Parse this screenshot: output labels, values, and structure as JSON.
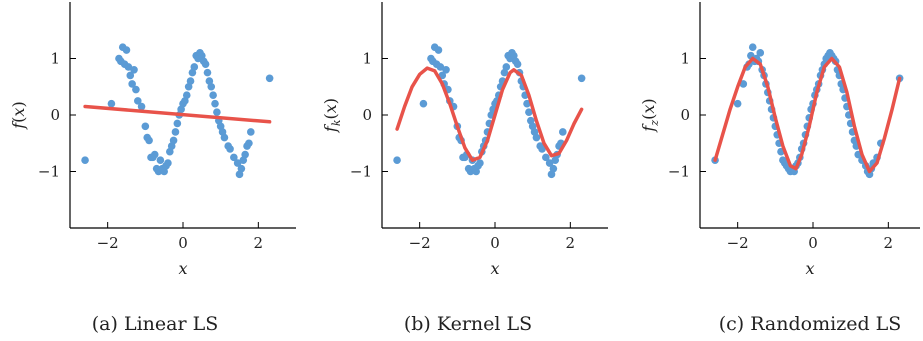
{
  "chart_data": [
    {
      "type": "scatter",
      "caption": "(a) Linear LS",
      "xlabel": "x",
      "ylabel": "f(x)",
      "ylabel_main": "f",
      "ylabel_sub": "",
      "xlim": [
        -3.0,
        3.0
      ],
      "ylim": [
        -2.0,
        2.0
      ],
      "xticks": [
        -2,
        0,
        2
      ],
      "yticks": [
        -1,
        0,
        1
      ],
      "xtick_labels": [
        "−2",
        "0",
        "2"
      ],
      "ytick_labels": [
        "−1",
        "0",
        "1"
      ],
      "points_color": "#5b9bd5",
      "line_color": "#e8534a",
      "points": [
        [
          -2.6,
          -0.8
        ],
        [
          -1.9,
          0.2
        ],
        [
          -1.7,
          1.0
        ],
        [
          -1.65,
          0.95
        ],
        [
          -1.6,
          1.2
        ],
        [
          -1.55,
          0.9
        ],
        [
          -1.5,
          1.15
        ],
        [
          -1.45,
          0.85
        ],
        [
          -1.4,
          0.7
        ],
        [
          -1.35,
          0.55
        ],
        [
          -1.3,
          0.8
        ],
        [
          -1.25,
          0.45
        ],
        [
          -1.2,
          0.25
        ],
        [
          -1.1,
          0.15
        ],
        [
          -1.0,
          -0.2
        ],
        [
          -0.95,
          -0.4
        ],
        [
          -0.9,
          -0.45
        ],
        [
          -0.85,
          -0.75
        ],
        [
          -0.8,
          -0.75
        ],
        [
          -0.75,
          -0.7
        ],
        [
          -0.7,
          -0.95
        ],
        [
          -0.65,
          -1.0
        ],
        [
          -0.6,
          -0.8
        ],
        [
          -0.55,
          -0.95
        ],
        [
          -0.5,
          -1.0
        ],
        [
          -0.45,
          -0.9
        ],
        [
          -0.4,
          -0.85
        ],
        [
          -0.35,
          -0.65
        ],
        [
          -0.3,
          -0.55
        ],
        [
          -0.25,
          -0.45
        ],
        [
          -0.2,
          -0.3
        ],
        [
          -0.15,
          -0.15
        ],
        [
          -0.1,
          0.0
        ],
        [
          -0.05,
          0.1
        ],
        [
          0.0,
          0.2
        ],
        [
          0.05,
          0.25
        ],
        [
          0.1,
          0.35
        ],
        [
          0.15,
          0.5
        ],
        [
          0.2,
          0.6
        ],
        [
          0.25,
          0.75
        ],
        [
          0.3,
          0.85
        ],
        [
          0.35,
          1.05
        ],
        [
          0.4,
          1.0
        ],
        [
          0.45,
          1.1
        ],
        [
          0.5,
          1.05
        ],
        [
          0.55,
          0.95
        ],
        [
          0.6,
          0.9
        ],
        [
          0.65,
          0.75
        ],
        [
          0.7,
          0.6
        ],
        [
          0.75,
          0.5
        ],
        [
          0.8,
          0.35
        ],
        [
          0.85,
          0.2
        ],
        [
          0.9,
          0.05
        ],
        [
          0.95,
          -0.1
        ],
        [
          1.0,
          -0.2
        ],
        [
          1.05,
          -0.3
        ],
        [
          1.1,
          -0.4
        ],
        [
          1.2,
          -0.55
        ],
        [
          1.25,
          -0.6
        ],
        [
          1.35,
          -0.75
        ],
        [
          1.45,
          -0.85
        ],
        [
          1.5,
          -1.05
        ],
        [
          1.55,
          -0.95
        ],
        [
          1.6,
          -0.8
        ],
        [
          1.65,
          -0.7
        ],
        [
          1.7,
          -0.55
        ],
        [
          1.75,
          -0.5
        ],
        [
          1.8,
          -0.3
        ],
        [
          2.3,
          0.65
        ]
      ],
      "curve": [
        [
          -2.6,
          0.15
        ],
        [
          2.3,
          -0.12
        ]
      ]
    },
    {
      "type": "scatter",
      "caption": "(b) Kernel LS",
      "xlabel": "x",
      "ylabel": "f_k(x)",
      "ylabel_main": "f",
      "ylabel_sub": "k",
      "xlim": [
        -3.0,
        3.0
      ],
      "ylim": [
        -2.0,
        2.0
      ],
      "xticks": [
        -2,
        0,
        2
      ],
      "yticks": [
        -1,
        0,
        1
      ],
      "xtick_labels": [
        "−2",
        "0",
        "2"
      ],
      "ytick_labels": [
        "−1",
        "0",
        "1"
      ],
      "points_color": "#5b9bd5",
      "line_color": "#e8534a",
      "points": [
        [
          -2.6,
          -0.8
        ],
        [
          -1.9,
          0.2
        ],
        [
          -1.7,
          1.0
        ],
        [
          -1.65,
          0.95
        ],
        [
          -1.6,
          1.2
        ],
        [
          -1.55,
          0.9
        ],
        [
          -1.5,
          1.15
        ],
        [
          -1.45,
          0.85
        ],
        [
          -1.4,
          0.7
        ],
        [
          -1.35,
          0.55
        ],
        [
          -1.3,
          0.8
        ],
        [
          -1.25,
          0.45
        ],
        [
          -1.2,
          0.25
        ],
        [
          -1.1,
          0.15
        ],
        [
          -1.0,
          -0.2
        ],
        [
          -0.95,
          -0.4
        ],
        [
          -0.9,
          -0.45
        ],
        [
          -0.85,
          -0.75
        ],
        [
          -0.8,
          -0.75
        ],
        [
          -0.75,
          -0.7
        ],
        [
          -0.7,
          -0.95
        ],
        [
          -0.65,
          -1.0
        ],
        [
          -0.6,
          -0.8
        ],
        [
          -0.55,
          -0.95
        ],
        [
          -0.5,
          -1.0
        ],
        [
          -0.45,
          -0.9
        ],
        [
          -0.4,
          -0.85
        ],
        [
          -0.35,
          -0.65
        ],
        [
          -0.3,
          -0.55
        ],
        [
          -0.25,
          -0.45
        ],
        [
          -0.2,
          -0.3
        ],
        [
          -0.15,
          -0.15
        ],
        [
          -0.1,
          0.0
        ],
        [
          -0.05,
          0.1
        ],
        [
          0.0,
          0.2
        ],
        [
          0.05,
          0.25
        ],
        [
          0.1,
          0.35
        ],
        [
          0.15,
          0.5
        ],
        [
          0.2,
          0.6
        ],
        [
          0.25,
          0.75
        ],
        [
          0.3,
          0.85
        ],
        [
          0.35,
          1.05
        ],
        [
          0.4,
          1.0
        ],
        [
          0.45,
          1.1
        ],
        [
          0.5,
          1.05
        ],
        [
          0.55,
          0.95
        ],
        [
          0.6,
          0.9
        ],
        [
          0.65,
          0.75
        ],
        [
          0.7,
          0.6
        ],
        [
          0.75,
          0.5
        ],
        [
          0.8,
          0.35
        ],
        [
          0.85,
          0.2
        ],
        [
          0.9,
          0.05
        ],
        [
          0.95,
          -0.1
        ],
        [
          1.0,
          -0.2
        ],
        [
          1.05,
          -0.3
        ],
        [
          1.1,
          -0.4
        ],
        [
          1.2,
          -0.55
        ],
        [
          1.25,
          -0.6
        ],
        [
          1.35,
          -0.75
        ],
        [
          1.45,
          -0.85
        ],
        [
          1.5,
          -1.05
        ],
        [
          1.55,
          -0.95
        ],
        [
          1.6,
          -0.8
        ],
        [
          1.65,
          -0.7
        ],
        [
          1.7,
          -0.55
        ],
        [
          1.75,
          -0.5
        ],
        [
          1.8,
          -0.3
        ],
        [
          2.3,
          0.65
        ]
      ],
      "curve": [
        [
          -2.6,
          -0.25
        ],
        [
          -2.4,
          0.15
        ],
        [
          -2.2,
          0.5
        ],
        [
          -2.0,
          0.72
        ],
        [
          -1.8,
          0.83
        ],
        [
          -1.6,
          0.78
        ],
        [
          -1.4,
          0.55
        ],
        [
          -1.2,
          0.2
        ],
        [
          -1.0,
          -0.2
        ],
        [
          -0.8,
          -0.58
        ],
        [
          -0.6,
          -0.8
        ],
        [
          -0.4,
          -0.75
        ],
        [
          -0.2,
          -0.45
        ],
        [
          0.0,
          0.0
        ],
        [
          0.2,
          0.45
        ],
        [
          0.4,
          0.75
        ],
        [
          0.5,
          0.8
        ],
        [
          0.7,
          0.7
        ],
        [
          0.9,
          0.35
        ],
        [
          1.1,
          -0.1
        ],
        [
          1.3,
          -0.5
        ],
        [
          1.5,
          -0.72
        ],
        [
          1.7,
          -0.68
        ],
        [
          1.9,
          -0.45
        ],
        [
          2.1,
          -0.15
        ],
        [
          2.3,
          0.1
        ]
      ]
    },
    {
      "type": "scatter",
      "caption": "(c) Randomized LS",
      "xlabel": "x",
      "ylabel": "f_z(x)",
      "ylabel_main": "f",
      "ylabel_sub": "z",
      "xlim": [
        -3.0,
        3.0
      ],
      "ylim": [
        -2.0,
        2.0
      ],
      "xticks": [
        -2,
        0,
        2
      ],
      "yticks": [
        -1,
        0,
        1
      ],
      "xtick_labels": [
        "−2",
        "0",
        "2"
      ],
      "ytick_labels": [
        "−1",
        "0",
        "1"
      ],
      "points_color": "#5b9bd5",
      "line_color": "#e8534a",
      "points": [
        [
          -2.6,
          -0.8
        ],
        [
          -2.0,
          0.2
        ],
        [
          -1.85,
          0.55
        ],
        [
          -1.75,
          0.85
        ],
        [
          -1.7,
          0.9
        ],
        [
          -1.65,
          1.05
        ],
        [
          -1.6,
          1.2
        ],
        [
          -1.55,
          0.95
        ],
        [
          -1.5,
          1.0
        ],
        [
          -1.45,
          0.95
        ],
        [
          -1.4,
          1.1
        ],
        [
          -1.35,
          0.8
        ],
        [
          -1.3,
          0.7
        ],
        [
          -1.25,
          0.55
        ],
        [
          -1.2,
          0.4
        ],
        [
          -1.15,
          0.25
        ],
        [
          -1.1,
          0.1
        ],
        [
          -1.05,
          -0.05
        ],
        [
          -1.0,
          -0.2
        ],
        [
          -0.95,
          -0.35
        ],
        [
          -0.9,
          -0.5
        ],
        [
          -0.85,
          -0.65
        ],
        [
          -0.8,
          -0.8
        ],
        [
          -0.75,
          -0.85
        ],
        [
          -0.7,
          -0.9
        ],
        [
          -0.65,
          -0.95
        ],
        [
          -0.6,
          -1.0
        ],
        [
          -0.55,
          -0.95
        ],
        [
          -0.5,
          -1.0
        ],
        [
          -0.45,
          -0.9
        ],
        [
          -0.4,
          -0.85
        ],
        [
          -0.35,
          -0.75
        ],
        [
          -0.3,
          -0.6
        ],
        [
          -0.25,
          -0.5
        ],
        [
          -0.2,
          -0.35
        ],
        [
          -0.15,
          -0.2
        ],
        [
          -0.1,
          -0.05
        ],
        [
          -0.05,
          0.1
        ],
        [
          0.0,
          0.2
        ],
        [
          0.05,
          0.35
        ],
        [
          0.1,
          0.45
        ],
        [
          0.15,
          0.55
        ],
        [
          0.2,
          0.7
        ],
        [
          0.25,
          0.8
        ],
        [
          0.3,
          0.9
        ],
        [
          0.35,
          1.0
        ],
        [
          0.4,
          1.05
        ],
        [
          0.45,
          1.1
        ],
        [
          0.5,
          1.05
        ],
        [
          0.55,
          1.0
        ],
        [
          0.6,
          0.95
        ],
        [
          0.65,
          0.8
        ],
        [
          0.7,
          0.7
        ],
        [
          0.75,
          0.55
        ],
        [
          0.8,
          0.45
        ],
        [
          0.85,
          0.3
        ],
        [
          0.9,
          0.15
        ],
        [
          0.95,
          0.0
        ],
        [
          1.0,
          -0.15
        ],
        [
          1.05,
          -0.3
        ],
        [
          1.1,
          -0.45
        ],
        [
          1.15,
          -0.55
        ],
        [
          1.2,
          -0.7
        ],
        [
          1.3,
          -0.8
        ],
        [
          1.4,
          -0.9
        ],
        [
          1.45,
          -1.0
        ],
        [
          1.5,
          -1.05
        ],
        [
          1.55,
          -0.95
        ],
        [
          1.6,
          -0.85
        ],
        [
          1.7,
          -0.75
        ],
        [
          1.8,
          -0.5
        ],
        [
          2.3,
          0.65
        ]
      ],
      "curve": [
        [
          -2.6,
          -0.8
        ],
        [
          -2.4,
          -0.35
        ],
        [
          -2.2,
          0.1
        ],
        [
          -2.0,
          0.5
        ],
        [
          -1.8,
          0.85
        ],
        [
          -1.6,
          1.0
        ],
        [
          -1.4,
          0.9
        ],
        [
          -1.2,
          0.5
        ],
        [
          -1.0,
          -0.05
        ],
        [
          -0.8,
          -0.55
        ],
        [
          -0.6,
          -0.9
        ],
        [
          -0.45,
          -0.95
        ],
        [
          -0.3,
          -0.7
        ],
        [
          -0.1,
          -0.2
        ],
        [
          0.1,
          0.4
        ],
        [
          0.3,
          0.85
        ],
        [
          0.5,
          1.0
        ],
        [
          0.7,
          0.85
        ],
        [
          0.9,
          0.4
        ],
        [
          1.1,
          -0.2
        ],
        [
          1.3,
          -0.7
        ],
        [
          1.5,
          -1.0
        ],
        [
          1.7,
          -0.85
        ],
        [
          1.9,
          -0.4
        ],
        [
          2.1,
          0.1
        ],
        [
          2.3,
          0.65
        ]
      ]
    }
  ]
}
